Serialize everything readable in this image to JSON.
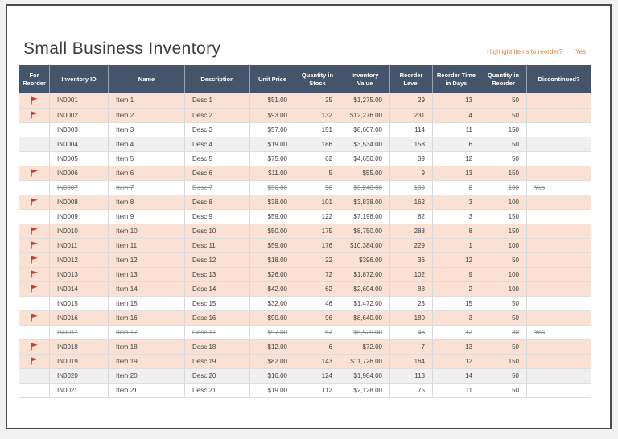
{
  "header": {
    "title": "Small Business Inventory",
    "highlight_prompt": "Highlight items to reorder?",
    "highlight_value": "Yes"
  },
  "colors": {
    "header_bg": "#44546A",
    "reorder_row_bg": "#FBE1D3",
    "band_row_bg": "#F0F0F0",
    "accent_orange": "#ED7D31",
    "flag_red": "#B6453C"
  },
  "table": {
    "columns": [
      "For Reorder",
      "Inventory ID",
      "Name",
      "Description",
      "Unit Price",
      "Quantity in Stock",
      "Inventory Value",
      "Reorder Level",
      "Reorder Time in Days",
      "Quantity in Reorder",
      "Discontinued?"
    ],
    "rows": [
      {
        "flagged": true,
        "struck": false,
        "id": "IN0001",
        "name": "Item 1",
        "description": "Desc 1",
        "unit_price": "$51.00",
        "quantity_in_stock": "25",
        "inventory_value": "$1,275.00",
        "reorder_level": "29",
        "reorder_time_days": "13",
        "quantity_in_reorder": "50",
        "discontinued": ""
      },
      {
        "flagged": true,
        "struck": false,
        "id": "IN0002",
        "name": "Item 2",
        "description": "Desc 2",
        "unit_price": "$93.00",
        "quantity_in_stock": "132",
        "inventory_value": "$12,276.00",
        "reorder_level": "231",
        "reorder_time_days": "4",
        "quantity_in_reorder": "50",
        "discontinued": ""
      },
      {
        "flagged": false,
        "struck": false,
        "id": "IN0003",
        "name": "Item 3",
        "description": "Desc 3",
        "unit_price": "$57.00",
        "quantity_in_stock": "151",
        "inventory_value": "$8,607.00",
        "reorder_level": "114",
        "reorder_time_days": "11",
        "quantity_in_reorder": "150",
        "discontinued": ""
      },
      {
        "flagged": false,
        "struck": false,
        "id": "IN0004",
        "name": "Item 4",
        "description": "Desc 4",
        "unit_price": "$19.00",
        "quantity_in_stock": "186",
        "inventory_value": "$3,534.00",
        "reorder_level": "158",
        "reorder_time_days": "6",
        "quantity_in_reorder": "50",
        "discontinued": ""
      },
      {
        "flagged": false,
        "struck": false,
        "id": "IN0005",
        "name": "Item 5",
        "description": "Desc 5",
        "unit_price": "$75.00",
        "quantity_in_stock": "62",
        "inventory_value": "$4,650.00",
        "reorder_level": "39",
        "reorder_time_days": "12",
        "quantity_in_reorder": "50",
        "discontinued": ""
      },
      {
        "flagged": true,
        "struck": false,
        "id": "IN0006",
        "name": "Item 6",
        "description": "Desc 6",
        "unit_price": "$11.00",
        "quantity_in_stock": "5",
        "inventory_value": "$55.00",
        "reorder_level": "9",
        "reorder_time_days": "13",
        "quantity_in_reorder": "150",
        "discontinued": ""
      },
      {
        "flagged": false,
        "struck": true,
        "id": "IN0007",
        "name": "Item 7",
        "description": "Desc 7",
        "unit_price": "$56.00",
        "quantity_in_stock": "58",
        "inventory_value": "$3,248.00",
        "reorder_level": "109",
        "reorder_time_days": "2",
        "quantity_in_reorder": "100",
        "discontinued": "Yes"
      },
      {
        "flagged": true,
        "struck": false,
        "id": "IN0008",
        "name": "Item 8",
        "description": "Desc 8",
        "unit_price": "$38.00",
        "quantity_in_stock": "101",
        "inventory_value": "$3,838.00",
        "reorder_level": "162",
        "reorder_time_days": "3",
        "quantity_in_reorder": "100",
        "discontinued": ""
      },
      {
        "flagged": false,
        "struck": false,
        "id": "IN0009",
        "name": "Item 9",
        "description": "Desc 9",
        "unit_price": "$59.00",
        "quantity_in_stock": "122",
        "inventory_value": "$7,198.00",
        "reorder_level": "82",
        "reorder_time_days": "3",
        "quantity_in_reorder": "150",
        "discontinued": ""
      },
      {
        "flagged": true,
        "struck": false,
        "id": "IN0010",
        "name": "Item 10",
        "description": "Desc 10",
        "unit_price": "$50.00",
        "quantity_in_stock": "175",
        "inventory_value": "$8,750.00",
        "reorder_level": "288",
        "reorder_time_days": "8",
        "quantity_in_reorder": "150",
        "discontinued": ""
      },
      {
        "flagged": true,
        "struck": false,
        "id": "IN0011",
        "name": "Item 11",
        "description": "Desc 11",
        "unit_price": "$59.00",
        "quantity_in_stock": "176",
        "inventory_value": "$10,384.00",
        "reorder_level": "229",
        "reorder_time_days": "1",
        "quantity_in_reorder": "100",
        "discontinued": ""
      },
      {
        "flagged": true,
        "struck": false,
        "id": "IN0012",
        "name": "Item 12",
        "description": "Desc 12",
        "unit_price": "$18.00",
        "quantity_in_stock": "22",
        "inventory_value": "$396.00",
        "reorder_level": "36",
        "reorder_time_days": "12",
        "quantity_in_reorder": "50",
        "discontinued": ""
      },
      {
        "flagged": true,
        "struck": false,
        "id": "IN0013",
        "name": "Item 13",
        "description": "Desc 13",
        "unit_price": "$26.00",
        "quantity_in_stock": "72",
        "inventory_value": "$1,872.00",
        "reorder_level": "102",
        "reorder_time_days": "9",
        "quantity_in_reorder": "100",
        "discontinued": ""
      },
      {
        "flagged": true,
        "struck": false,
        "id": "IN0014",
        "name": "Item 14",
        "description": "Desc 14",
        "unit_price": "$42.00",
        "quantity_in_stock": "62",
        "inventory_value": "$2,604.00",
        "reorder_level": "88",
        "reorder_time_days": "2",
        "quantity_in_reorder": "100",
        "discontinued": ""
      },
      {
        "flagged": false,
        "struck": false,
        "id": "IN0015",
        "name": "Item 15",
        "description": "Desc 15",
        "unit_price": "$32.00",
        "quantity_in_stock": "46",
        "inventory_value": "$1,472.00",
        "reorder_level": "23",
        "reorder_time_days": "15",
        "quantity_in_reorder": "50",
        "discontinued": ""
      },
      {
        "flagged": true,
        "struck": false,
        "id": "IN0016",
        "name": "Item 16",
        "description": "Desc 16",
        "unit_price": "$90.00",
        "quantity_in_stock": "96",
        "inventory_value": "$8,640.00",
        "reorder_level": "180",
        "reorder_time_days": "3",
        "quantity_in_reorder": "50",
        "discontinued": ""
      },
      {
        "flagged": false,
        "struck": true,
        "id": "IN0017",
        "name": "Item 17",
        "description": "Desc 17",
        "unit_price": "$97.00",
        "quantity_in_stock": "57",
        "inventory_value": "$5,529.00",
        "reorder_level": "46",
        "reorder_time_days": "12",
        "quantity_in_reorder": "30",
        "discontinued": "Yes"
      },
      {
        "flagged": true,
        "struck": false,
        "id": "IN0018",
        "name": "Item 18",
        "description": "Desc 18",
        "unit_price": "$12.00",
        "quantity_in_stock": "6",
        "inventory_value": "$72.00",
        "reorder_level": "7",
        "reorder_time_days": "13",
        "quantity_in_reorder": "50",
        "discontinued": ""
      },
      {
        "flagged": true,
        "struck": false,
        "id": "IN0019",
        "name": "Item 19",
        "description": "Desc 19",
        "unit_price": "$82.00",
        "quantity_in_stock": "143",
        "inventory_value": "$11,726.00",
        "reorder_level": "164",
        "reorder_time_days": "12",
        "quantity_in_reorder": "150",
        "discontinued": ""
      },
      {
        "flagged": false,
        "struck": false,
        "id": "IN0020",
        "name": "Item 20",
        "description": "Desc 20",
        "unit_price": "$16.00",
        "quantity_in_stock": "124",
        "inventory_value": "$1,984.00",
        "reorder_level": "113",
        "reorder_time_days": "14",
        "quantity_in_reorder": "50",
        "discontinued": ""
      },
      {
        "flagged": false,
        "struck": false,
        "id": "IN0021",
        "name": "Item 21",
        "description": "Desc 21",
        "unit_price": "$19.00",
        "quantity_in_stock": "112",
        "inventory_value": "$2,128.00",
        "reorder_level": "75",
        "reorder_time_days": "11",
        "quantity_in_reorder": "50",
        "discontinued": ""
      }
    ]
  }
}
